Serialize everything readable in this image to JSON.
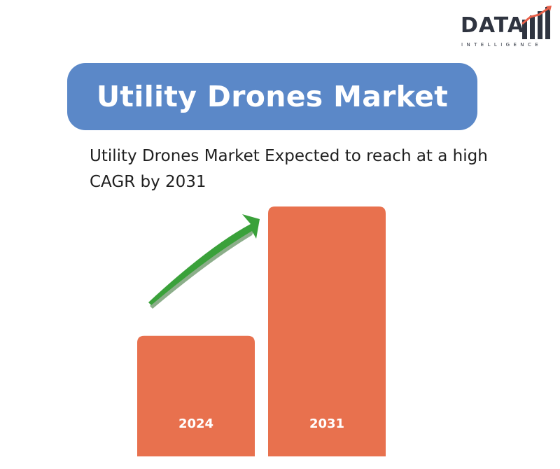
{
  "logo": {
    "word": "DATA",
    "sub": "INTELLIGENCE",
    "colors": {
      "dark": "#2f3440",
      "accent": "#e8604a"
    }
  },
  "title": "Utility Drones Market",
  "subtitle": "Utility Drones Market Expected to reach at a high CAGR by 2031",
  "chart_data": {
    "type": "bar",
    "categories": [
      "2024",
      "2031"
    ],
    "values": [
      0.41,
      0.85
    ],
    "value_note": "",
    "bar_color": "#e8714e",
    "arrow_color": "#3aa13a",
    "trend": "upward"
  }
}
